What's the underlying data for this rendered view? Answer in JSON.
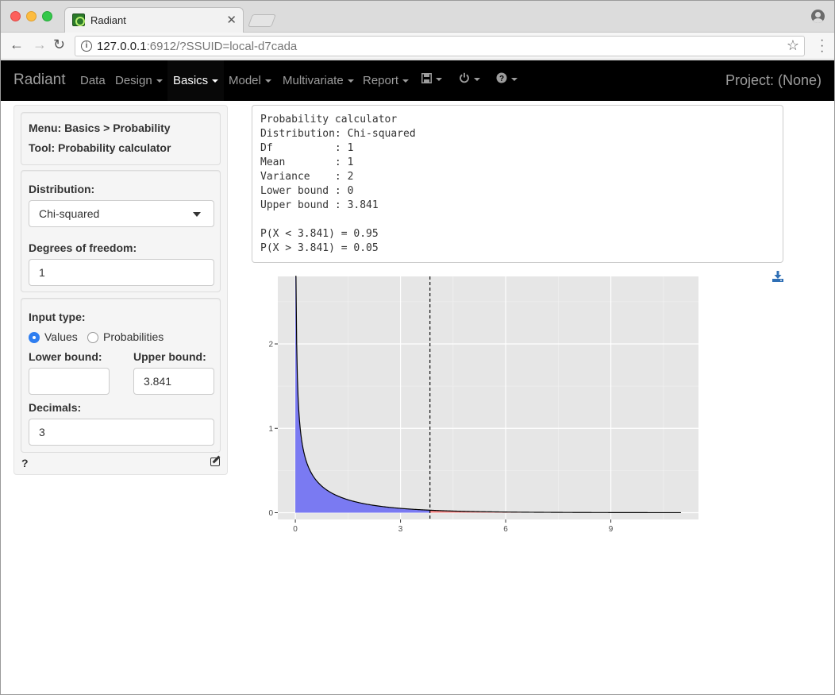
{
  "browser": {
    "tab_title": "Radiant",
    "url_host": "127.0.0.1",
    "url_rest": ":6912/?SSUID=local-d7cada"
  },
  "navbar": {
    "brand": "Radiant",
    "items": [
      "Data",
      "Design",
      "Basics",
      "Model",
      "Multivariate",
      "Report"
    ],
    "active": "Basics",
    "project": "Project: (None)"
  },
  "sidebar": {
    "menu_line": "Menu: Basics > Probability",
    "tool_line": "Tool: Probability calculator",
    "distribution_label": "Distribution:",
    "distribution_value": "Chi-squared",
    "df_label": "Degrees of freedom:",
    "df_value": "1",
    "input_type_label": "Input type:",
    "radio_values": "Values",
    "radio_probs": "Probabilities",
    "lower_label": "Lower bound:",
    "lower_value": "",
    "upper_label": "Upper bound:",
    "upper_value": "3.841",
    "decimals_label": "Decimals:",
    "decimals_value": "3",
    "help": "?"
  },
  "output_text": "Probability calculator\nDistribution: Chi-squared\nDf          : 1\nMean        : 1\nVariance    : 2\nLower bound : 0\nUpper bound : 3.841\n\nP(X < 3.841) = 0.95\nP(X > 3.841) = 0.05",
  "chart_data": {
    "type": "area",
    "distribution": "chi-squared",
    "df": 1,
    "xlim": [
      -0.5,
      11.5
    ],
    "ylim": [
      -0.08,
      2.8
    ],
    "x_ticks": [
      0,
      3,
      6,
      9
    ],
    "y_ticks": [
      0,
      1,
      2
    ],
    "vline": 3.841,
    "x_max": 11,
    "fill_below": "#7a7af2",
    "fill_above": "#f08080",
    "panel_bg": "#e6e6e6"
  }
}
